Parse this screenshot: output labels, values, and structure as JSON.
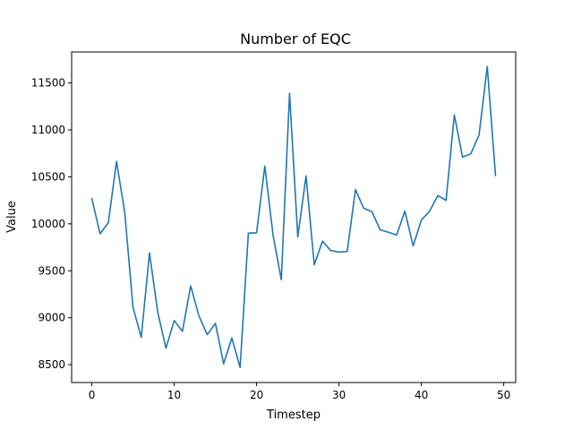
{
  "chart_data": {
    "type": "line",
    "title": "Number of EQC",
    "xlabel": "Timestep",
    "ylabel": "Value",
    "xlim": [
      -2.45,
      51.45
    ],
    "ylim": [
      8310,
      11830
    ],
    "xticks": [
      0,
      10,
      20,
      30,
      40,
      50
    ],
    "yticks": [
      8500,
      9000,
      9500,
      10000,
      10500,
      11000,
      11500
    ],
    "grid": false,
    "line_color": "#1f77b4",
    "series": [
      {
        "x": [
          0,
          1,
          2,
          3,
          4,
          5,
          6,
          7,
          8,
          9,
          10,
          11,
          12,
          13,
          14,
          15,
          16,
          17,
          18,
          19,
          20,
          21,
          22,
          23,
          24,
          25,
          26,
          27,
          28,
          29,
          30,
          31,
          32,
          33,
          34,
          35,
          36,
          37,
          38,
          39,
          40,
          41,
          42,
          43,
          44,
          45,
          46,
          47,
          48,
          49
        ],
        "values": [
          10270,
          9895,
          10010,
          10665,
          10120,
          9110,
          8790,
          9690,
          9060,
          8675,
          8970,
          8855,
          9340,
          9020,
          8820,
          8940,
          8510,
          8785,
          8470,
          9900,
          9905,
          10615,
          9880,
          9405,
          11390,
          9860,
          10510,
          9565,
          9815,
          9715,
          9700,
          9705,
          10365,
          10165,
          10130,
          9935,
          9910,
          9880,
          10135,
          9765,
          10040,
          10135,
          10300,
          10250,
          11160,
          10710,
          10745,
          10945,
          11675,
          10515
        ]
      }
    ]
  }
}
